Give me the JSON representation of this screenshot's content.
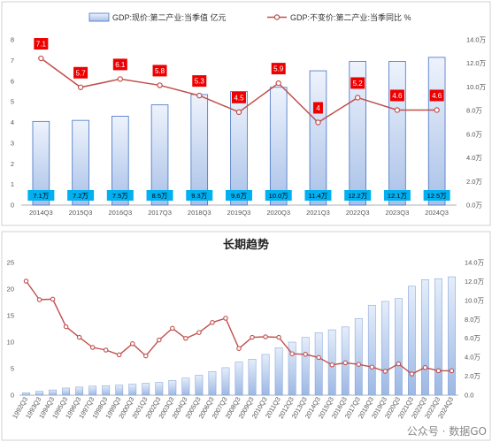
{
  "chart_data": [
    {
      "type": "bar+line",
      "legend": {
        "bar": "GDP:现价:第二产业:当季值 亿元",
        "line": "GDP:不变价:第二产业:当季同比 %"
      },
      "categories": [
        "2014Q3",
        "2015Q3",
        "2016Q3",
        "2017Q3",
        "2018Q3",
        "2019Q3",
        "2020Q3",
        "2021Q3",
        "2022Q3",
        "2023Q3",
        "2024Q3"
      ],
      "bar_values": [
        4.05,
        4.1,
        4.3,
        4.85,
        5.35,
        5.5,
        5.7,
        6.5,
        6.95,
        6.95,
        7.15
      ],
      "bar_labels": [
        "7.1万",
        "7.2万",
        "7.5万",
        "8.5万",
        "9.3万",
        "9.6万",
        "10.0万",
        "11.4万",
        "12.2万",
        "12.1万",
        "12.5万"
      ],
      "line_values": [
        7.1,
        5.7,
        6.1,
        5.8,
        5.3,
        4.5,
        5.9,
        4,
        5.2,
        4.6,
        4.6
      ],
      "line_labels": [
        "7.1",
        "5.7",
        "6.1",
        "5.8",
        "5.3",
        "4.5",
        "5.9",
        "4",
        "5.2",
        "4.6",
        "4.6"
      ],
      "y_left": {
        "range": [
          0,
          8
        ],
        "ticks": [
          "0",
          "1",
          "2",
          "3",
          "4",
          "5",
          "6",
          "7",
          "8"
        ]
      },
      "y_right": {
        "range": [
          0,
          14
        ],
        "ticks": [
          "0.0万",
          "2.0万",
          "4.0万",
          "6.0万",
          "8.0万",
          "10.0万",
          "12.0万",
          "14.0万"
        ]
      }
    },
    {
      "type": "bar+line",
      "title": "长期趋势",
      "categories": [
        "1992Q3",
        "1993Q3",
        "1994Q3",
        "1995Q3",
        "1996Q3",
        "1997Q3",
        "1998Q3",
        "1999Q3",
        "2000Q3",
        "2001Q3",
        "2002Q3",
        "2003Q3",
        "2004Q3",
        "2005Q3",
        "2006Q3",
        "2007Q3",
        "2008Q3",
        "2009Q3",
        "2010Q3",
        "2011Q3",
        "2012Q3",
        "2013Q3",
        "2014Q3",
        "2015Q3",
        "2016Q3",
        "2017Q3",
        "2018Q3",
        "2019Q3",
        "2020Q3",
        "2021Q3",
        "2022Q3",
        "2023Q3",
        "2024Q3"
      ],
      "bar_values": [
        0.25,
        0.4,
        0.55,
        0.75,
        0.85,
        0.95,
        1.0,
        1.05,
        1.15,
        1.25,
        1.35,
        1.55,
        1.8,
        2.1,
        2.5,
        2.9,
        3.5,
        3.8,
        4.3,
        5.0,
        5.6,
        6.1,
        6.6,
        6.9,
        7.2,
        8.1,
        9.5,
        9.9,
        10.2,
        11.5,
        12.2,
        12.3,
        12.5
      ],
      "line_values": [
        21.5,
        18.0,
        18.1,
        12.9,
        10.9,
        9.0,
        8.5,
        7.6,
        9.7,
        7.4,
        10.4,
        12.6,
        10.7,
        11.8,
        13.7,
        14.5,
        8.8,
        10.9,
        11.0,
        10.9,
        7.8,
        7.7,
        7.1,
        5.7,
        6.1,
        5.8,
        5.3,
        4.5,
        5.9,
        4.0,
        5.2,
        4.6,
        4.6
      ],
      "y_left": {
        "range": [
          0,
          25
        ],
        "ticks": [
          "0",
          "5",
          "10",
          "15",
          "20",
          "25"
        ]
      },
      "y_right": {
        "range": [
          0,
          14
        ],
        "ticks": [
          "0.0",
          "2.0万",
          "4.0万",
          "6.0万",
          "8.0万",
          "10.0万",
          "12.0万",
          "14.0万"
        ]
      }
    }
  ],
  "colors": {
    "bar_fill_top": "#dde8f8",
    "bar_fill_bottom": "#b8ccec",
    "bar_stroke": "#4472c4",
    "line": "#c0504d",
    "label_red": "#ee0000",
    "label_cyan": "#00b0f0"
  },
  "watermark": "公众号 · 数据GO"
}
